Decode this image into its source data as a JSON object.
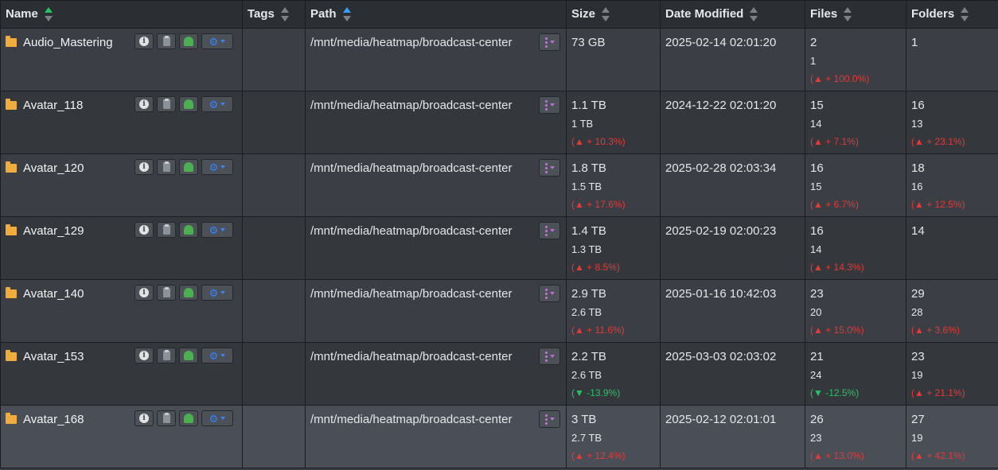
{
  "columns": [
    {
      "label": "Name",
      "sort": "asc-green"
    },
    {
      "label": "Tags",
      "sort": "none"
    },
    {
      "label": "Path",
      "sort": "asc-blue"
    },
    {
      "label": "Size",
      "sort": "none"
    },
    {
      "label": "Date Modified",
      "sort": "none"
    },
    {
      "label": "Files",
      "sort": "none"
    },
    {
      "label": "Folders",
      "sort": "none"
    }
  ],
  "colors": {
    "up": "#e53935",
    "down": "#22c55e",
    "folder": "#f0ad3e",
    "accent": "#3b82f6"
  },
  "rows": [
    {
      "name": "Audio_Mastering",
      "path": "/mnt/media/heatmap/broadcast-center",
      "size": "73 GB",
      "size_prev": "",
      "size_delta": "",
      "size_dir": "",
      "date": "2025-02-14 02:01:20",
      "files": "2",
      "files_prev": "1",
      "files_delta": "(▲ + 100.0%)",
      "files_dir": "up",
      "folders": "1",
      "folders_prev": "",
      "folders_delta": "",
      "folders_dir": ""
    },
    {
      "name": "Avatar_118",
      "path": "/mnt/media/heatmap/broadcast-center",
      "size": "1.1 TB",
      "size_prev": "1 TB",
      "size_delta": "(▲ + 10.3%)",
      "size_dir": "up",
      "date": "2024-12-22 02:01:20",
      "files": "15",
      "files_prev": "14",
      "files_delta": "(▲ + 7.1%)",
      "files_dir": "up",
      "folders": "16",
      "folders_prev": "13",
      "folders_delta": "(▲ + 23.1%)",
      "folders_dir": "up"
    },
    {
      "name": "Avatar_120",
      "path": "/mnt/media/heatmap/broadcast-center",
      "size": "1.8 TB",
      "size_prev": "1.5 TB",
      "size_delta": "(▲ + 17.6%)",
      "size_dir": "up",
      "date": "2025-02-28 02:03:34",
      "files": "16",
      "files_prev": "15",
      "files_delta": "(▲ + 6.7%)",
      "files_dir": "up",
      "folders": "18",
      "folders_prev": "16",
      "folders_delta": "(▲ + 12.5%)",
      "folders_dir": "up"
    },
    {
      "name": "Avatar_129",
      "path": "/mnt/media/heatmap/broadcast-center",
      "size": "1.4 TB",
      "size_prev": "1.3 TB",
      "size_delta": "(▲ + 8.5%)",
      "size_dir": "up",
      "date": "2025-02-19 02:00:23",
      "files": "16",
      "files_prev": "14",
      "files_delta": "(▲ + 14.3%)",
      "files_dir": "up",
      "folders": "14",
      "folders_prev": "",
      "folders_delta": "",
      "folders_dir": ""
    },
    {
      "name": "Avatar_140",
      "path": "/mnt/media/heatmap/broadcast-center",
      "size": "2.9 TB",
      "size_prev": "2.6 TB",
      "size_delta": "(▲ + 11.6%)",
      "size_dir": "up",
      "date": "2025-01-16 10:42:03",
      "files": "23",
      "files_prev": "20",
      "files_delta": "(▲ + 15.0%)",
      "files_dir": "up",
      "folders": "29",
      "folders_prev": "28",
      "folders_delta": "(▲ + 3.6%)",
      "folders_dir": "up"
    },
    {
      "name": "Avatar_153",
      "path": "/mnt/media/heatmap/broadcast-center",
      "size": "2.2 TB",
      "size_prev": "2.6 TB",
      "size_delta": "(▼ -13.9%)",
      "size_dir": "down",
      "date": "2025-03-03 02:03:02",
      "files": "21",
      "files_prev": "24",
      "files_delta": "(▼ -12.5%)",
      "files_dir": "down",
      "folders": "23",
      "folders_prev": "19",
      "folders_delta": "(▲ + 21.1%)",
      "folders_dir": "up"
    },
    {
      "name": "Avatar_168",
      "path": "/mnt/media/heatmap/broadcast-center",
      "size": "3 TB",
      "size_prev": "2.7 TB",
      "size_delta": "(▲ + 12.4%)",
      "size_dir": "up",
      "date": "2025-02-12 02:01:01",
      "files": "26",
      "files_prev": "23",
      "files_delta": "(▲ + 13.0%)",
      "files_dir": "up",
      "folders": "27",
      "folders_prev": "19",
      "folders_delta": "(▲ + 42.1%)",
      "folders_dir": "up",
      "selected": true
    }
  ]
}
